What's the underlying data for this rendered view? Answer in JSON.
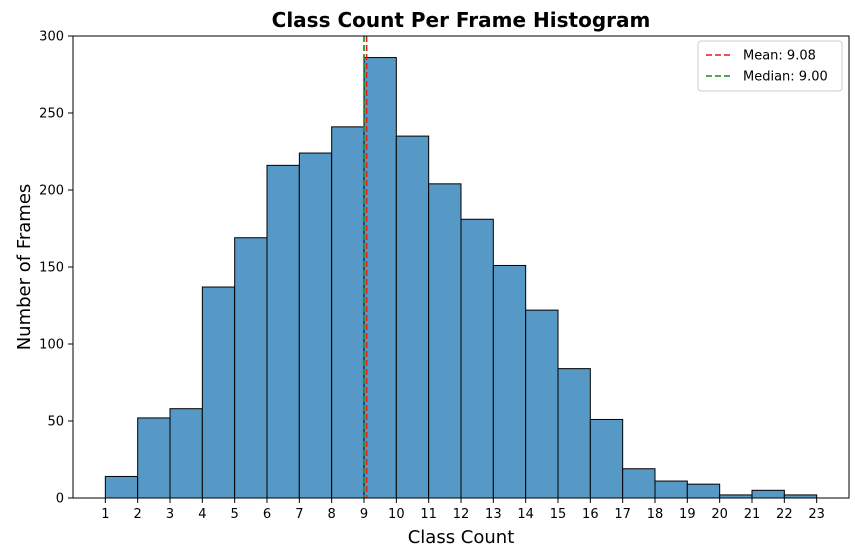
{
  "chart_data": {
    "type": "bar",
    "title": "Class Count Per Frame Histogram",
    "xlabel": "Class Count",
    "ylabel": "Number of Frames",
    "xlim": [
      0,
      24
    ],
    "ylim": [
      0,
      300
    ],
    "x_ticks": [
      "1",
      "2",
      "3",
      "4",
      "5",
      "6",
      "7",
      "8",
      "9",
      "10",
      "11",
      "12",
      "13",
      "14",
      "15",
      "16",
      "17",
      "18",
      "19",
      "20",
      "21",
      "22",
      "23"
    ],
    "y_ticks": [
      "0",
      "50",
      "100",
      "150",
      "200",
      "250",
      "300"
    ],
    "bins": [
      {
        "start": 1,
        "end": 2,
        "count": 14
      },
      {
        "start": 2,
        "end": 3,
        "count": 52
      },
      {
        "start": 3,
        "end": 4,
        "count": 58
      },
      {
        "start": 4,
        "end": 5,
        "count": 137
      },
      {
        "start": 5,
        "end": 6,
        "count": 169
      },
      {
        "start": 6,
        "end": 7,
        "count": 216
      },
      {
        "start": 7,
        "end": 8,
        "count": 224
      },
      {
        "start": 8,
        "end": 9,
        "count": 241
      },
      {
        "start": 9,
        "end": 10,
        "count": 286
      },
      {
        "start": 10,
        "end": 11,
        "count": 235
      },
      {
        "start": 11,
        "end": 12,
        "count": 204
      },
      {
        "start": 12,
        "end": 13,
        "count": 181
      },
      {
        "start": 13,
        "end": 14,
        "count": 151
      },
      {
        "start": 14,
        "end": 15,
        "count": 122
      },
      {
        "start": 15,
        "end": 16,
        "count": 84
      },
      {
        "start": 16,
        "end": 17,
        "count": 51
      },
      {
        "start": 17,
        "end": 18,
        "count": 19
      },
      {
        "start": 18,
        "end": 19,
        "count": 11
      },
      {
        "start": 19,
        "end": 20,
        "count": 9
      },
      {
        "start": 20,
        "end": 21,
        "count": 2
      },
      {
        "start": 21,
        "end": 22,
        "count": 5
      },
      {
        "start": 22,
        "end": 23,
        "count": 2
      }
    ],
    "bar_color": "#5699c6",
    "bar_edge_color": "#000000",
    "reference_lines": [
      {
        "label": "Mean: 9.08",
        "x": 9.08,
        "color": "#e41a1c"
      },
      {
        "label": "Median: 9.00",
        "x": 9.0,
        "color": "#1a8a1a"
      }
    ],
    "grid": false,
    "legend_position": "top-right"
  }
}
